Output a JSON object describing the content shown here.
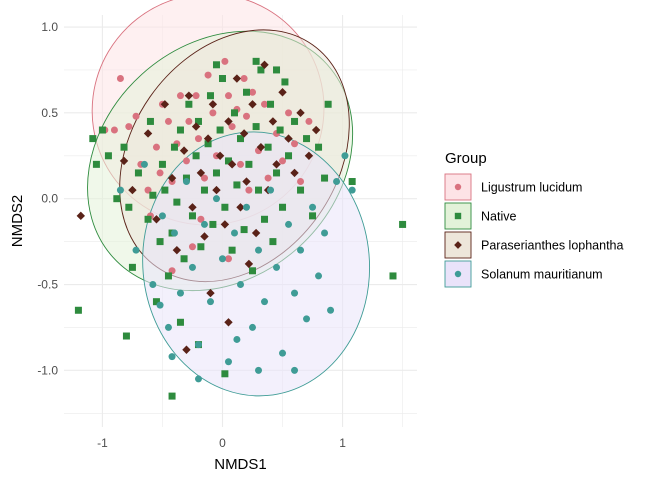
{
  "chart_data": {
    "type": "scatter",
    "xlabel": "NMDS1",
    "ylabel": "NMDS2",
    "xlim": [
      -1.32,
      1.62
    ],
    "ylim": [
      -1.33,
      1.07
    ],
    "x_ticks": [
      -1,
      0,
      1
    ],
    "y_ticks": [
      1.0,
      0.5,
      0.0,
      -0.5,
      -1.0
    ],
    "x_tick_labels": [
      "-1",
      "0",
      "1"
    ],
    "y_tick_labels": [
      "1.0",
      "0.5",
      "0.0",
      "-0.5",
      "-1.0"
    ],
    "grid": true,
    "legend": {
      "title": "Group",
      "position": "right"
    },
    "series": [
      {
        "name": "Ligustrum lucidum",
        "color": "#d9727f",
        "fill": "#fde3e6",
        "marker": "circle",
        "ellipse": {
          "cx": -0.12,
          "cy": 0.52,
          "rx": 0.97,
          "ry": 0.67,
          "angle_deg": 38
        },
        "points": [
          [
            -0.9,
            0.4
          ],
          [
            -0.85,
            0.7
          ],
          [
            -0.78,
            0.42
          ],
          [
            -0.72,
            0.48
          ],
          [
            -0.68,
            0.2
          ],
          [
            -0.62,
            0.05
          ],
          [
            -0.55,
            0.3
          ],
          [
            -0.52,
            0.15
          ],
          [
            -0.5,
            0.55
          ],
          [
            -0.45,
            0.45
          ],
          [
            -0.42,
            0.1
          ],
          [
            -0.38,
            0.32
          ],
          [
            -0.35,
            0.6
          ],
          [
            -0.3,
            0.22
          ],
          [
            -0.28,
            0.45
          ],
          [
            -0.22,
            0.6
          ],
          [
            -0.2,
            0.35
          ],
          [
            -0.15,
            0.12
          ],
          [
            -0.12,
            0.72
          ],
          [
            -0.08,
            0.5
          ],
          [
            -0.05,
            0.25
          ],
          [
            0.02,
            0.8
          ],
          [
            0.05,
            0.6
          ],
          [
            0.08,
            0.42
          ],
          [
            0.12,
            0.52
          ],
          [
            0.15,
            0.2
          ],
          [
            0.18,
            0.7
          ],
          [
            0.2,
            0.48
          ],
          [
            0.25,
            0.62
          ],
          [
            0.3,
            0.28
          ],
          [
            0.35,
            0.55
          ],
          [
            0.38,
            0.12
          ],
          [
            0.45,
            0.38
          ],
          [
            0.5,
            0.22
          ],
          [
            0.55,
            0.5
          ],
          [
            0.6,
            0.32
          ],
          [
            0.65,
            0.1
          ],
          [
            0.72,
            0.45
          ],
          [
            -0.6,
            -0.1
          ],
          [
            -0.42,
            -0.42
          ],
          [
            -0.25,
            -0.28
          ],
          [
            0.05,
            -0.35
          ],
          [
            -0.18,
            -0.12
          ],
          [
            0.22,
            0.05
          ],
          [
            -0.98,
            0.4
          ]
        ]
      },
      {
        "name": "Native",
        "color": "#2e8b3e",
        "fill": "#e3f2d9",
        "marker": "square",
        "ellipse": {
          "cx": -0.02,
          "cy": 0.22,
          "rx": 1.2,
          "ry": 0.68,
          "angle_deg": 42
        },
        "points": [
          [
            -1.2,
            -0.65
          ],
          [
            -1.08,
            0.35
          ],
          [
            -1.05,
            0.2
          ],
          [
            -1.0,
            0.4
          ],
          [
            -0.95,
            0.25
          ],
          [
            -0.88,
            0.0
          ],
          [
            -0.82,
            0.3
          ],
          [
            -0.8,
            -0.8
          ],
          [
            -0.78,
            -0.05
          ],
          [
            -0.75,
            -0.4
          ],
          [
            -0.7,
            0.15
          ],
          [
            -0.62,
            -0.12
          ],
          [
            -0.6,
            0.45
          ],
          [
            -0.58,
            0.02
          ],
          [
            -0.55,
            -0.6
          ],
          [
            -0.52,
            -0.25
          ],
          [
            -0.5,
            0.2
          ],
          [
            -0.48,
            0.05
          ],
          [
            -0.45,
            -0.45
          ],
          [
            -0.42,
            -0.2
          ],
          [
            -0.4,
            0.3
          ],
          [
            -0.38,
            -0.02
          ],
          [
            -0.35,
            0.4
          ],
          [
            -0.32,
            -0.35
          ],
          [
            -0.3,
            0.12
          ],
          [
            -0.28,
            0.55
          ],
          [
            -0.25,
            -0.1
          ],
          [
            -0.22,
            0.25
          ],
          [
            -0.2,
            0.45
          ],
          [
            -0.18,
            -0.28
          ],
          [
            -0.15,
            0.05
          ],
          [
            -0.12,
            0.32
          ],
          [
            -0.1,
            0.6
          ],
          [
            -0.08,
            -0.15
          ],
          [
            -0.05,
            0.15
          ],
          [
            -0.02,
            0.4
          ],
          [
            0.0,
            0.7
          ],
          [
            0.02,
            -0.05
          ],
          [
            0.05,
            0.22
          ],
          [
            0.08,
            -0.3
          ],
          [
            0.1,
            0.5
          ],
          [
            0.12,
            0.08
          ],
          [
            0.15,
            0.35
          ],
          [
            0.18,
            -0.18
          ],
          [
            0.2,
            0.62
          ],
          [
            0.22,
            0.2
          ],
          [
            0.25,
            -0.42
          ],
          [
            0.28,
            0.42
          ],
          [
            0.3,
            0.05
          ],
          [
            0.32,
            0.75
          ],
          [
            0.35,
            -0.12
          ],
          [
            0.38,
            0.3
          ],
          [
            0.4,
            0.55
          ],
          [
            0.42,
            -0.25
          ],
          [
            0.45,
            0.15
          ],
          [
            0.48,
            0.4
          ],
          [
            0.5,
            -0.05
          ],
          [
            0.52,
            0.68
          ],
          [
            0.55,
            0.25
          ],
          [
            0.6,
            0.45
          ],
          [
            0.65,
            0.05
          ],
          [
            0.7,
            0.35
          ],
          [
            0.75,
            -0.1
          ],
          [
            0.8,
            0.3
          ],
          [
            0.85,
            0.12
          ],
          [
            0.88,
            0.55
          ],
          [
            1.08,
            0.1
          ],
          [
            1.5,
            -0.15
          ],
          [
            1.42,
            -0.45
          ],
          [
            0.02,
            -1.02
          ],
          [
            -0.42,
            -1.15
          ],
          [
            0.28,
            0.8
          ],
          [
            -0.05,
            0.78
          ],
          [
            0.45,
            0.75
          ],
          [
            -0.35,
            -0.72
          ],
          [
            -0.2,
            -0.85
          ]
        ]
      },
      {
        "name": "Paraserianthes lophantha",
        "color": "#5a2218",
        "fill": "#ede6da",
        "marker": "diamond",
        "ellipse": {
          "cx": 0.1,
          "cy": 0.25,
          "rx": 1.13,
          "ry": 0.6,
          "angle_deg": 55
        },
        "points": [
          [
            -1.18,
            -0.1
          ],
          [
            -0.82,
            0.22
          ],
          [
            -0.75,
            0.05
          ],
          [
            -0.62,
            0.38
          ],
          [
            -0.55,
            -0.12
          ],
          [
            -0.48,
            0.55
          ],
          [
            -0.42,
            0.12
          ],
          [
            -0.38,
            -0.3
          ],
          [
            -0.32,
            0.28
          ],
          [
            -0.28,
            0.6
          ],
          [
            -0.25,
            -0.05
          ],
          [
            -0.22,
            0.42
          ],
          [
            -0.18,
            0.15
          ],
          [
            -0.15,
            -0.22
          ],
          [
            -0.12,
            0.35
          ],
          [
            -0.08,
            0.55
          ],
          [
            -0.05,
            0.05
          ],
          [
            -0.02,
            0.25
          ],
          [
            0.02,
            -0.15
          ],
          [
            0.05,
            0.45
          ],
          [
            0.08,
            0.2
          ],
          [
            0.12,
            0.7
          ],
          [
            0.15,
            -0.05
          ],
          [
            0.18,
            0.38
          ],
          [
            0.2,
            0.1
          ],
          [
            0.25,
            0.55
          ],
          [
            0.28,
            -0.2
          ],
          [
            0.32,
            0.3
          ],
          [
            0.35,
            0.78
          ],
          [
            0.38,
            0.05
          ],
          [
            0.42,
            0.45
          ],
          [
            0.45,
            0.2
          ],
          [
            0.5,
            0.62
          ],
          [
            0.55,
            0.35
          ],
          [
            0.6,
            0.15
          ],
          [
            0.65,
            0.5
          ],
          [
            0.72,
            0.25
          ],
          [
            0.78,
            0.4
          ],
          [
            0.22,
            -0.38
          ],
          [
            -0.1,
            -0.55
          ],
          [
            0.05,
            -0.72
          ],
          [
            -0.3,
            -0.88
          ]
        ]
      },
      {
        "name": "Solanum mauritianum",
        "color": "#3f9c96",
        "fill": "#eae3fa",
        "marker": "circle",
        "ellipse": {
          "cx": 0.28,
          "cy": -0.38,
          "rx": 1.1,
          "ry": 0.66,
          "angle_deg": 95
        },
        "points": [
          [
            -0.85,
            0.05
          ],
          [
            -0.72,
            -0.3
          ],
          [
            -0.65,
            0.2
          ],
          [
            -0.58,
            -0.5
          ],
          [
            -0.5,
            -0.1
          ],
          [
            -0.45,
            -0.75
          ],
          [
            -0.4,
            -0.2
          ],
          [
            -0.35,
            -0.55
          ],
          [
            -0.3,
            0.1
          ],
          [
            -0.25,
            -0.4
          ],
          [
            -0.2,
            -0.85
          ],
          [
            -0.15,
            -0.15
          ],
          [
            -0.1,
            -0.6
          ],
          [
            -0.05,
            0.0
          ],
          [
            0.0,
            -0.35
          ],
          [
            0.05,
            -0.95
          ],
          [
            0.1,
            -0.2
          ],
          [
            0.15,
            -0.5
          ],
          [
            0.2,
            -0.05
          ],
          [
            0.25,
            -0.75
          ],
          [
            0.3,
            -0.3
          ],
          [
            0.35,
            -0.6
          ],
          [
            0.4,
            0.05
          ],
          [
            0.45,
            -0.4
          ],
          [
            0.5,
            -0.9
          ],
          [
            0.55,
            -0.15
          ],
          [
            0.6,
            -0.55
          ],
          [
            0.65,
            -0.3
          ],
          [
            0.7,
            -0.7
          ],
          [
            0.75,
            -0.05
          ],
          [
            0.8,
            -0.45
          ],
          [
            0.85,
            -0.2
          ],
          [
            0.9,
            -0.65
          ],
          [
            0.95,
            0.1
          ],
          [
            1.02,
            0.25
          ],
          [
            1.08,
            0.05
          ],
          [
            -0.42,
            -0.92
          ],
          [
            -0.2,
            -1.05
          ],
          [
            0.3,
            -1.0
          ],
          [
            0.6,
            -1.0
          ],
          [
            -0.52,
            -0.62
          ],
          [
            0.12,
            -0.82
          ]
        ]
      }
    ]
  }
}
